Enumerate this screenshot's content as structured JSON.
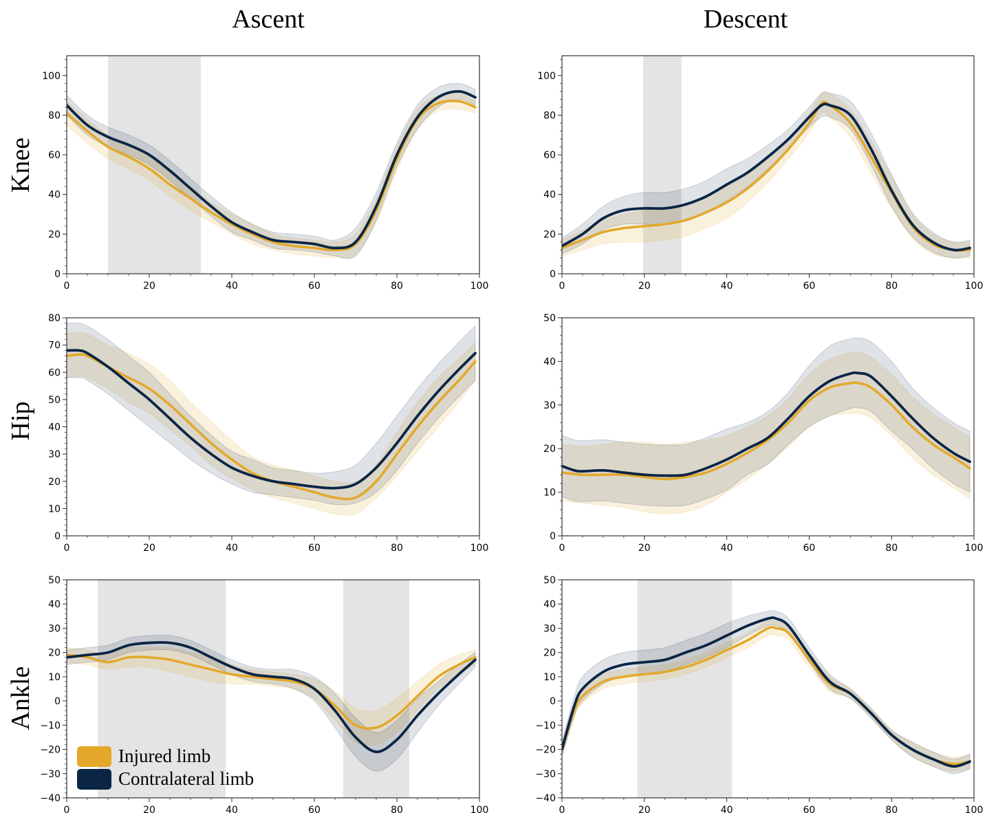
{
  "col_titles": [
    "Ascent",
    "Descent"
  ],
  "row_labels": [
    "Knee",
    "Hip",
    "Ankle"
  ],
  "legend": [
    {
      "label": "Injured limb",
      "color": "#E3A82A"
    },
    {
      "label": "Contralateral limb",
      "color": "#0B2545"
    }
  ],
  "colors": {
    "injured": "#E3A82A",
    "contralateral": "#0B2545",
    "shade": "#E4E4E4"
  },
  "chart_data": [
    {
      "id": "knee-ascent",
      "type": "line",
      "title": "",
      "xlabel": "",
      "ylabel": "",
      "xlim": [
        0,
        100
      ],
      "ylim": [
        0,
        110
      ],
      "xticks": [
        0,
        20,
        40,
        60,
        80,
        100
      ],
      "yticks": [
        0,
        20,
        40,
        60,
        80,
        100
      ],
      "shaded_regions": [
        [
          10,
          32.5
        ]
      ],
      "series": [
        {
          "name": "Injured limb",
          "x": [
            0,
            5,
            10,
            15,
            20,
            25,
            30,
            35,
            40,
            45,
            50,
            55,
            60,
            65,
            70,
            75,
            80,
            85,
            90,
            95,
            99
          ],
          "y": [
            81,
            72,
            64,
            59,
            53,
            45,
            38,
            31,
            25,
            20,
            16,
            14,
            13,
            12,
            15,
            32,
            58,
            78,
            86,
            87,
            84
          ],
          "band": [
            6,
            6,
            6,
            6,
            6,
            6,
            6,
            5,
            5,
            5,
            4,
            4,
            4,
            4,
            5,
            6,
            6,
            5,
            4,
            4,
            3
          ]
        },
        {
          "name": "Contralateral limb",
          "x": [
            0,
            5,
            10,
            15,
            20,
            25,
            30,
            35,
            40,
            45,
            50,
            55,
            60,
            65,
            70,
            75,
            80,
            85,
            90,
            95,
            99
          ],
          "y": [
            85,
            75,
            69,
            65,
            60,
            52,
            43,
            34,
            26,
            21,
            17,
            16,
            15,
            13,
            16,
            34,
            60,
            79,
            89,
            92,
            89
          ],
          "band": [
            5,
            5,
            5,
            5,
            5,
            5,
            5,
            5,
            5,
            4,
            4,
            4,
            4,
            4,
            7,
            7,
            6,
            6,
            5,
            4,
            4
          ]
        }
      ]
    },
    {
      "id": "knee-descent",
      "type": "line",
      "title": "",
      "xlabel": "",
      "ylabel": "",
      "xlim": [
        0,
        100
      ],
      "ylim": [
        0,
        110
      ],
      "xticks": [
        0,
        20,
        40,
        60,
        80,
        100
      ],
      "yticks": [
        0,
        20,
        40,
        60,
        80,
        100
      ],
      "shaded_regions": [
        [
          19.7,
          29
        ]
      ],
      "series": [
        {
          "name": "Injured limb",
          "x": [
            0,
            5,
            10,
            15,
            20,
            25,
            30,
            35,
            40,
            45,
            50,
            55,
            60,
            63,
            65,
            70,
            75,
            80,
            85,
            90,
            95,
            99
          ],
          "y": [
            13,
            17,
            21,
            23,
            24,
            25,
            27,
            31,
            36,
            43,
            52,
            63,
            76,
            86,
            85,
            76,
            59,
            41,
            24,
            15,
            12,
            12
          ],
          "band": [
            4,
            5,
            6,
            7,
            8,
            8,
            8,
            8,
            8,
            7,
            6,
            5,
            5,
            5,
            6,
            7,
            8,
            8,
            6,
            5,
            4,
            4
          ]
        },
        {
          "name": "Contralateral limb",
          "x": [
            0,
            5,
            10,
            15,
            20,
            25,
            30,
            35,
            40,
            45,
            50,
            55,
            60,
            63,
            65,
            70,
            75,
            80,
            85,
            90,
            95,
            99
          ],
          "y": [
            14,
            20,
            28,
            32,
            33,
            33,
            35,
            39,
            45,
            51,
            59,
            68,
            79,
            85,
            85,
            80,
            63,
            42,
            25,
            16,
            12,
            13
          ],
          "band": [
            4,
            5,
            6,
            7,
            8,
            8,
            8,
            8,
            8,
            7,
            6,
            5,
            5,
            6,
            6,
            7,
            8,
            8,
            6,
            5,
            4,
            4
          ]
        }
      ]
    },
    {
      "id": "hip-ascent",
      "type": "line",
      "title": "",
      "xlabel": "",
      "ylabel": "",
      "xlim": [
        0,
        100
      ],
      "ylim": [
        0,
        80
      ],
      "xticks": [
        0,
        20,
        40,
        60,
        80,
        100
      ],
      "yticks": [
        0,
        10,
        20,
        30,
        40,
        50,
        60,
        70,
        80
      ],
      "shaded_regions": [],
      "series": [
        {
          "name": "Injured limb",
          "x": [
            0,
            3,
            5,
            10,
            15,
            20,
            25,
            30,
            35,
            40,
            45,
            50,
            55,
            60,
            65,
            70,
            75,
            80,
            85,
            90,
            95,
            99
          ],
          "y": [
            66,
            66.5,
            66,
            62,
            58,
            54,
            48,
            41,
            34,
            28,
            23,
            20,
            18,
            16,
            14,
            14,
            20,
            30,
            40,
            49,
            57,
            64
          ],
          "band": [
            8,
            8,
            8,
            8,
            9,
            9,
            9,
            8,
            8,
            7,
            6,
            6,
            6,
            6,
            6,
            6,
            6,
            8,
            9,
            9,
            8,
            7
          ]
        },
        {
          "name": "Contralateral limb",
          "x": [
            0,
            3,
            5,
            10,
            15,
            20,
            25,
            30,
            35,
            40,
            45,
            50,
            55,
            60,
            65,
            70,
            75,
            80,
            85,
            90,
            95,
            99
          ],
          "y": [
            68,
            68,
            67,
            62,
            56,
            50,
            43,
            36,
            30,
            25,
            22,
            20,
            19,
            18,
            17.5,
            19,
            25,
            34,
            44,
            53,
            61,
            67
          ],
          "band": [
            10,
            10,
            10,
            10,
            10,
            10,
            9,
            8,
            7,
            6,
            6,
            5,
            5,
            5,
            6,
            7,
            9,
            10,
            10,
            10,
            10,
            10
          ]
        }
      ]
    },
    {
      "id": "hip-descent",
      "type": "line",
      "title": "",
      "xlabel": "",
      "ylabel": "",
      "xlim": [
        0,
        100
      ],
      "ylim": [
        0,
        50
      ],
      "xticks": [
        0,
        20,
        40,
        60,
        80,
        100
      ],
      "yticks": [
        0,
        10,
        20,
        30,
        40,
        50
      ],
      "shaded_regions": [],
      "series": [
        {
          "name": "Injured limb",
          "x": [
            0,
            5,
            10,
            15,
            20,
            25,
            30,
            35,
            40,
            45,
            50,
            55,
            60,
            65,
            70,
            72,
            75,
            80,
            85,
            90,
            95,
            99
          ],
          "y": [
            14.5,
            14,
            14,
            14,
            13.5,
            13,
            13.5,
            14.5,
            16.5,
            19,
            22,
            26,
            31,
            34,
            35,
            35,
            34,
            30,
            25,
            21,
            18,
            15.5
          ],
          "band": [
            6.5,
            6.5,
            7,
            7.5,
            8,
            8,
            8,
            7.5,
            6.5,
            6,
            5.5,
            5.5,
            6,
            6.5,
            7,
            7,
            7,
            7,
            7,
            7,
            7,
            7
          ]
        },
        {
          "name": "Contralateral limb",
          "x": [
            0,
            3,
            5,
            10,
            15,
            20,
            25,
            30,
            35,
            40,
            45,
            50,
            55,
            60,
            65,
            70,
            72,
            75,
            80,
            85,
            90,
            95,
            99
          ],
          "y": [
            16,
            15,
            14.8,
            15,
            14.5,
            14,
            13.8,
            14,
            15.5,
            17.5,
            20,
            22.5,
            27,
            32,
            35.5,
            37.2,
            37.3,
            36.5,
            32,
            27,
            22.5,
            19,
            17
          ],
          "band": [
            7,
            7,
            7,
            7,
            7,
            7,
            7,
            7,
            7,
            7,
            6,
            6,
            6,
            7,
            8,
            8,
            8,
            8,
            8,
            7,
            7,
            7,
            7
          ]
        }
      ]
    },
    {
      "id": "ankle-ascent",
      "type": "line",
      "title": "",
      "xlabel": "",
      "ylabel": "",
      "xlim": [
        0,
        100
      ],
      "ylim": [
        -40,
        50
      ],
      "xticks": [
        0,
        20,
        40,
        60,
        80,
        100
      ],
      "yticks": [
        -40,
        -30,
        -20,
        -10,
        0,
        10,
        20,
        30,
        40,
        50
      ],
      "shaded_regions": [
        [
          7.5,
          38.5
        ],
        [
          67,
          83
        ]
      ],
      "series": [
        {
          "name": "Injured limb",
          "x": [
            0,
            5,
            10,
            15,
            20,
            25,
            30,
            35,
            40,
            45,
            50,
            55,
            60,
            65,
            70,
            75,
            80,
            85,
            90,
            95,
            99
          ],
          "y": [
            19,
            18,
            16,
            18,
            18,
            17,
            15,
            13,
            11,
            10,
            9,
            8,
            5,
            -2,
            -10,
            -11,
            -6,
            2,
            10,
            15,
            18
          ],
          "band": [
            3,
            3,
            3,
            4,
            4,
            5,
            5,
            5,
            4,
            3,
            3,
            3,
            4,
            6,
            7,
            7,
            7,
            6,
            5,
            4,
            3
          ]
        },
        {
          "name": "Contralateral limb",
          "x": [
            0,
            5,
            10,
            15,
            20,
            25,
            30,
            35,
            40,
            45,
            50,
            55,
            60,
            65,
            70,
            75,
            80,
            85,
            90,
            95,
            99
          ],
          "y": [
            18,
            19,
            20,
            23,
            24,
            24,
            22,
            18,
            14,
            11,
            10,
            9,
            5,
            -4,
            -15,
            -21,
            -16,
            -6,
            3,
            11,
            17
          ],
          "band": [
            3,
            3,
            3,
            3,
            3,
            3,
            3,
            3,
            3,
            3,
            3,
            4,
            5,
            7,
            8,
            8,
            8,
            7,
            5,
            4,
            3
          ]
        }
      ]
    },
    {
      "id": "ankle-descent",
      "type": "line",
      "title": "",
      "xlabel": "",
      "ylabel": "",
      "xlim": [
        0,
        100
      ],
      "ylim": [
        -40,
        50
      ],
      "xticks": [
        0,
        20,
        40,
        60,
        80,
        100
      ],
      "yticks": [
        -40,
        -30,
        -20,
        -10,
        0,
        10,
        20,
        30,
        40,
        50
      ],
      "shaded_regions": [
        [
          18.3,
          41.3
        ]
      ],
      "series": [
        {
          "name": "Injured limb",
          "x": [
            0,
            3,
            5,
            10,
            15,
            20,
            25,
            30,
            35,
            40,
            45,
            50,
            52,
            55,
            60,
            65,
            70,
            75,
            80,
            85,
            90,
            95,
            99
          ],
          "y": [
            -20,
            -4,
            2,
            8,
            10,
            11,
            12,
            14,
            17,
            21,
            25,
            30,
            30,
            28,
            17,
            7,
            3,
            -5,
            -14,
            -20,
            -24,
            -26,
            -25
          ],
          "band": [
            3,
            3,
            3,
            3,
            3,
            3,
            3,
            3,
            3,
            3,
            3,
            3,
            3,
            3,
            3,
            3,
            2,
            2,
            2,
            3,
            3,
            3,
            3
          ]
        },
        {
          "name": "Contralateral limb",
          "x": [
            0,
            3,
            5,
            10,
            15,
            20,
            25,
            30,
            35,
            40,
            45,
            50,
            52,
            55,
            60,
            65,
            70,
            75,
            80,
            85,
            90,
            95,
            99
          ],
          "y": [
            -20,
            -2,
            5,
            12,
            15,
            16,
            17,
            20,
            23,
            27,
            31,
            34,
            34,
            31,
            19,
            8,
            3,
            -5,
            -14,
            -20,
            -24,
            -27,
            -25
          ],
          "band": [
            3,
            4,
            5,
            5,
            5,
            5,
            5,
            5,
            5,
            5,
            4,
            3,
            3,
            3,
            3,
            3,
            2,
            2,
            2,
            3,
            3,
            3,
            3
          ]
        }
      ]
    }
  ]
}
